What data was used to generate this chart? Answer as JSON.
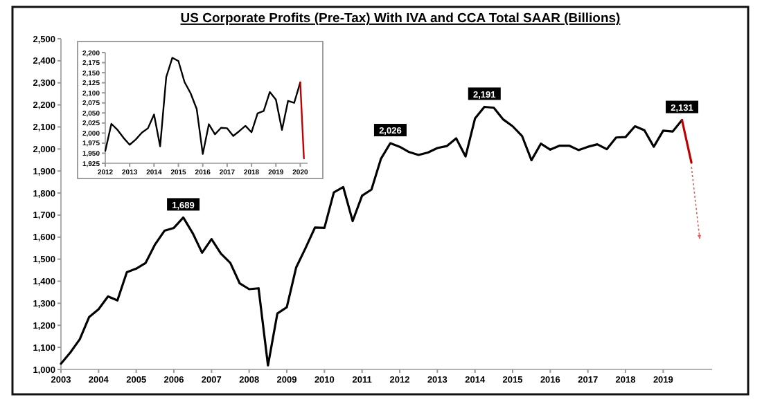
{
  "chart_data": [
    {
      "type": "line",
      "title": "US Corporate Profits (Pre-Tax) With IVA and CCA Total SAAR (Billions)",
      "xlim": [
        2003,
        2020.3
      ],
      "xticks": [
        2003,
        2004,
        2005,
        2006,
        2007,
        2008,
        2009,
        2010,
        2011,
        2012,
        2013,
        2014,
        2015,
        2016,
        2017,
        2018,
        2019
      ],
      "ylim": [
        1000,
        2500
      ],
      "yticks": [
        {
          "value": 1000,
          "label": "1,000"
        },
        {
          "value": 1100,
          "label": "1,100"
        },
        {
          "value": 1200,
          "label": "1,200"
        },
        {
          "value": 1300,
          "label": "1,300"
        },
        {
          "value": 1400,
          "label": "1,400"
        },
        {
          "value": 1500,
          "label": "1,500"
        },
        {
          "value": 1600,
          "label": "1,600"
        },
        {
          "value": 1700,
          "label": "1,700"
        },
        {
          "value": 1800,
          "label": "1,800"
        },
        {
          "value": 1900,
          "label": "1,900"
        },
        {
          "value": 2000,
          "label": "2,000"
        },
        {
          "value": 2100,
          "label": "2,100"
        },
        {
          "value": 2200,
          "label": "2,200"
        },
        {
          "value": 2300,
          "label": "2,300"
        },
        {
          "value": 2400,
          "label": "2,400"
        },
        {
          "value": 2500,
          "label": "2,500"
        }
      ],
      "grid": false,
      "marker": "none",
      "series": [
        {
          "color": "#000000",
          "line_style": "solid",
          "x": [
            2003,
            2003.25,
            2003.5,
            2003.75,
            2004,
            2004.25,
            2004.5,
            2004.75,
            2005,
            2005.25,
            2005.5,
            2005.75,
            2006,
            2006.25,
            2006.5,
            2006.75,
            2007,
            2007.25,
            2007.5,
            2007.75,
            2008,
            2008.25,
            2008.5,
            2008.75,
            2009,
            2009.25,
            2009.5,
            2009.75,
            2010,
            2010.25,
            2010.5,
            2010.75,
            2011,
            2011.25,
            2011.5,
            2011.75,
            2012,
            2012.25,
            2012.5,
            2012.75,
            2013,
            2013.25,
            2013.5,
            2013.75,
            2014,
            2014.25,
            2014.5,
            2014.75,
            2015,
            2015.25,
            2015.5,
            2015.75,
            2016,
            2016.25,
            2016.5,
            2016.75,
            2017,
            2017.25,
            2017.5,
            2017.75,
            2018,
            2018.25,
            2018.5,
            2018.75,
            2019,
            2019.25,
            2019.5
          ],
          "values": [
            1026,
            1077,
            1137,
            1238,
            1273,
            1331,
            1313,
            1441,
            1457,
            1483,
            1567,
            1629,
            1642,
            1689,
            1618,
            1529,
            1591,
            1525,
            1483,
            1390,
            1364,
            1368,
            1018,
            1254,
            1282,
            1463,
            1551,
            1644,
            1642,
            1803,
            1827,
            1673,
            1788,
            1816,
            1955,
            2026,
            2010,
            1986,
            1973,
            1984,
            2004,
            2013,
            2048,
            1966,
            2138,
            2191,
            2187,
            2134,
            2103,
            2059,
            1949,
            2024,
            1997,
            2015,
            2015,
            1995,
            2010,
            2021,
            1999,
            2052,
            2054,
            2103,
            2085,
            2010,
            2083,
            2079,
            2131
          ],
          "value_labels": [
            null,
            null,
            null,
            null,
            null,
            null,
            null,
            null,
            null,
            null,
            null,
            null,
            null,
            "1,689",
            null,
            null,
            null,
            null,
            null,
            null,
            null,
            null,
            null,
            null,
            null,
            null,
            null,
            null,
            null,
            null,
            null,
            null,
            null,
            null,
            null,
            "2,026",
            null,
            null,
            null,
            null,
            null,
            null,
            null,
            null,
            null,
            "2,191",
            null,
            null,
            null,
            null,
            null,
            null,
            null,
            null,
            null,
            null,
            null,
            null,
            null,
            null,
            null,
            null,
            null,
            null,
            null,
            null,
            "2,131"
          ]
        },
        {
          "color": "#c00000",
          "line_style": "solid",
          "x": [
            2019.5,
            2019.75
          ],
          "values": [
            2131,
            1938
          ]
        }
      ]
    },
    {
      "type": "line",
      "xlim": [
        2012,
        2020.3
      ],
      "xticks": [
        2012,
        2013,
        2014,
        2015,
        2016,
        2017,
        2018,
        2019,
        2020
      ],
      "ylim": [
        1925,
        2200
      ],
      "yticks": [
        {
          "value": 1925,
          "label": "1,925"
        },
        {
          "value": 1950,
          "label": "1,950"
        },
        {
          "value": 1975,
          "label": "1,975"
        },
        {
          "value": 2000,
          "label": "2,000"
        },
        {
          "value": 2025,
          "label": "2,025"
        },
        {
          "value": 2050,
          "label": "2,050"
        },
        {
          "value": 2075,
          "label": "2,075"
        },
        {
          "value": 2100,
          "label": "2,100"
        },
        {
          "value": 2125,
          "label": "2,125"
        },
        {
          "value": 2150,
          "label": "2,150"
        },
        {
          "value": 2175,
          "label": "2,175"
        },
        {
          "value": 2200,
          "label": "2,200"
        }
      ],
      "grid": false,
      "marker": "none",
      "series": [
        {
          "color": "#000000",
          "line_style": "solid",
          "x": [
            2012,
            2012.25,
            2012.5,
            2012.75,
            2013,
            2013.25,
            2013.5,
            2013.75,
            2014,
            2014.25,
            2014.5,
            2014.75,
            2015,
            2015.25,
            2015.5,
            2015.75,
            2016,
            2016.25,
            2016.5,
            2016.75,
            2017,
            2017.25,
            2017.5,
            2017.75,
            2018,
            2018.25,
            2018.5,
            2018.75,
            2019,
            2019.25,
            2019.5,
            2019.75,
            2020
          ],
          "values": [
            1956,
            2023,
            2008,
            1988,
            1971,
            1984,
            2001,
            2012,
            2046,
            1967,
            2139,
            2187,
            2179,
            2127,
            2099,
            2060,
            1948,
            2022,
            1997,
            2013,
            2012,
            1993,
            2005,
            2018,
            2002,
            2049,
            2055,
            2102,
            2083,
            2008,
            2080,
            2075,
            2126
          ]
        },
        {
          "color": "#c00000",
          "line_style": "solid",
          "x": [
            2020,
            2020.15
          ],
          "values": [
            2126,
            1937
          ]
        }
      ]
    }
  ]
}
